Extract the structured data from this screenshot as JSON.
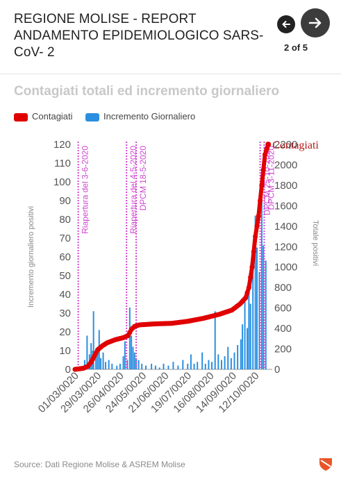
{
  "header": {
    "title": "REGIONE MOLISE - REPORT ANDAMENTO EPIDEMIOLOGICO SARS-CoV- 2",
    "page_counter": "2 of 5",
    "prev_icon": "arrow-left-icon",
    "next_icon": "arrow-right-icon"
  },
  "chart_title": "Contagiati totali ed incremento giornaliero",
  "legend": [
    {
      "label": "Contagiati",
      "color": "#e00000"
    },
    {
      "label": "Incremento Giornaliero",
      "color": "#2a8fe0"
    }
  ],
  "source": "Source: Dati Regione Molise & ASREM Molise",
  "chart_data": {
    "type": "bar+line",
    "ylabel_left": "Incremento giornaliero positivi",
    "ylabel_right": "Totale positivi",
    "y_left_range": [
      0,
      120
    ],
    "y_left_ticks": [
      "0",
      "10",
      "20",
      "30",
      "40",
      "50",
      "60",
      "70",
      "80",
      "90",
      "100",
      "110",
      "120"
    ],
    "y_right_range": [
      0,
      2200
    ],
    "y_right_ticks": [
      "0",
      "200",
      "400",
      "600",
      "800",
      "1000",
      "1200",
      "1400",
      "1600",
      "1800",
      "2000",
      "2200"
    ],
    "x_ticks": [
      "01/03/0020",
      "29/03/0020",
      "26/04/0020",
      "24/05/0020",
      "21/06/0020",
      "19/07/0020",
      "16/08/0020",
      "14/09/0020",
      "12/10/0020"
    ],
    "x_range_days": [
      0,
      245
    ],
    "vlines": [
      {
        "day": 4,
        "label": "Riapertura del 3-6-2020"
      },
      {
        "day": 64,
        "label": "Riapertura del 4-5-2020"
      },
      {
        "day": 76,
        "label": "DPCM 18-5-2020"
      },
      {
        "day": 230,
        "label": "DPCM 25-10-2020"
      },
      {
        "day": 235,
        "label": "DPCM 3-11-2020"
      }
    ],
    "series_end_label": "Contagiati",
    "series": [
      {
        "name": "Contagiati",
        "color": "#e00000",
        "points": [
          [
            0,
            0
          ],
          [
            10,
            10
          ],
          [
            16,
            30
          ],
          [
            20,
            70
          ],
          [
            24,
            130
          ],
          [
            28,
            190
          ],
          [
            34,
            230
          ],
          [
            40,
            260
          ],
          [
            50,
            290
          ],
          [
            60,
            310
          ],
          [
            66,
            330
          ],
          [
            70,
            390
          ],
          [
            74,
            420
          ],
          [
            80,
            435
          ],
          [
            100,
            445
          ],
          [
            120,
            450
          ],
          [
            140,
            470
          ],
          [
            160,
            500
          ],
          [
            180,
            540
          ],
          [
            195,
            580
          ],
          [
            205,
            640
          ],
          [
            212,
            700
          ],
          [
            216,
            800
          ],
          [
            220,
            1000
          ],
          [
            224,
            1300
          ],
          [
            228,
            1500
          ],
          [
            232,
            1800
          ],
          [
            236,
            2100
          ],
          [
            240,
            2200
          ]
        ]
      },
      {
        "name": "Incremento Giornaliero",
        "color": "#2a8fe0",
        "bars": [
          [
            12,
            5
          ],
          [
            15,
            18
          ],
          [
            18,
            8
          ],
          [
            20,
            14
          ],
          [
            22,
            10
          ],
          [
            23,
            31
          ],
          [
            26,
            7
          ],
          [
            28,
            12
          ],
          [
            30,
            21
          ],
          [
            32,
            6
          ],
          [
            35,
            9
          ],
          [
            38,
            4
          ],
          [
            42,
            5
          ],
          [
            46,
            3
          ],
          [
            52,
            2
          ],
          [
            56,
            3
          ],
          [
            60,
            7
          ],
          [
            62,
            15
          ],
          [
            65,
            5
          ],
          [
            68,
            33
          ],
          [
            70,
            18
          ],
          [
            72,
            12
          ],
          [
            74,
            9
          ],
          [
            76,
            6
          ],
          [
            79,
            5
          ],
          [
            83,
            3
          ],
          [
            88,
            2
          ],
          [
            95,
            3
          ],
          [
            100,
            2
          ],
          [
            105,
            1
          ],
          [
            110,
            3
          ],
          [
            116,
            2
          ],
          [
            122,
            4
          ],
          [
            128,
            2
          ],
          [
            134,
            5
          ],
          [
            140,
            3
          ],
          [
            144,
            8
          ],
          [
            148,
            3
          ],
          [
            152,
            4
          ],
          [
            158,
            9
          ],
          [
            162,
            3
          ],
          [
            166,
            5
          ],
          [
            170,
            4
          ],
          [
            174,
            31
          ],
          [
            178,
            8
          ],
          [
            182,
            5
          ],
          [
            186,
            7
          ],
          [
            190,
            12
          ],
          [
            194,
            6
          ],
          [
            198,
            9
          ],
          [
            202,
            13
          ],
          [
            206,
            16
          ],
          [
            208,
            24
          ],
          [
            211,
            36
          ],
          [
            214,
            22
          ],
          [
            216,
            44
          ],
          [
            218,
            35
          ],
          [
            221,
            60
          ],
          [
            224,
            82
          ],
          [
            226,
            65
          ],
          [
            229,
            52
          ],
          [
            232,
            90
          ],
          [
            234,
            66
          ],
          [
            237,
            58
          ]
        ]
      }
    ]
  }
}
